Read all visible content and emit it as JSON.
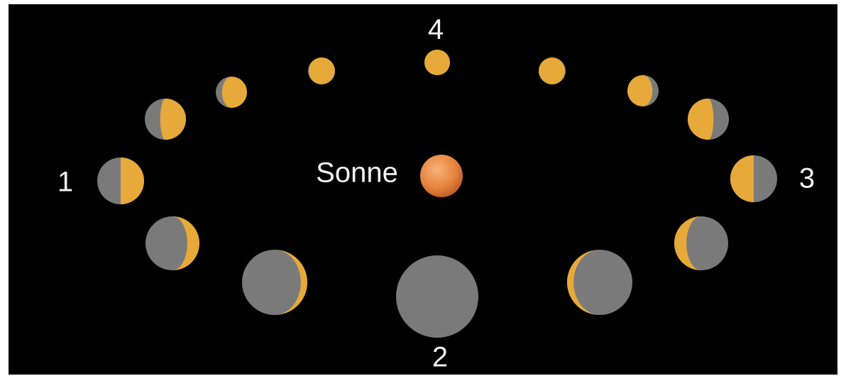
{
  "labels": {
    "position_1": "1",
    "position_2": "2",
    "position_3": "3",
    "position_4": "4",
    "sun": "Sonne"
  }
}
